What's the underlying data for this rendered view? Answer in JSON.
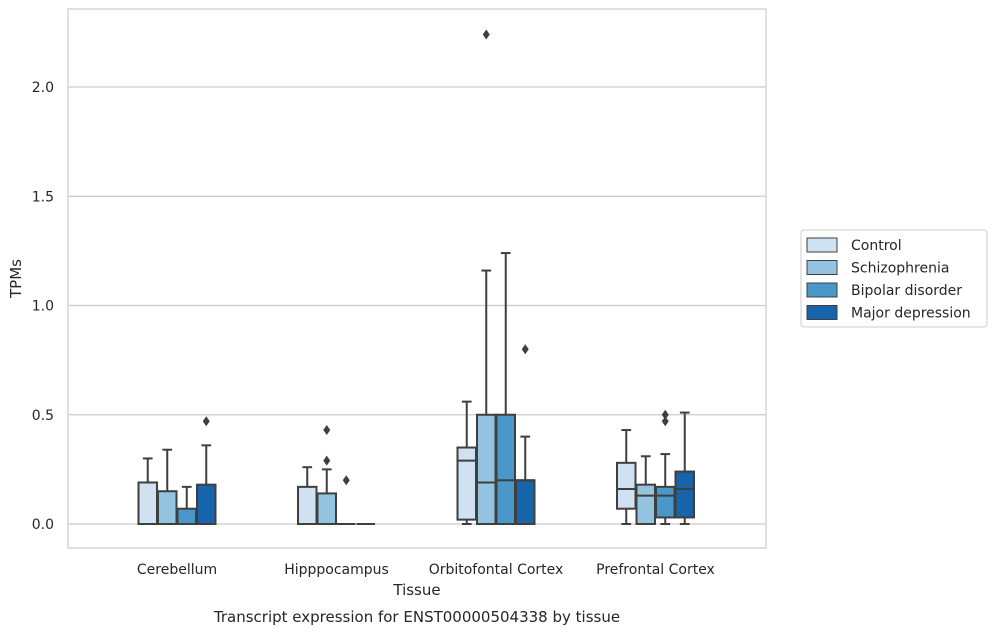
{
  "chart_data": {
    "type": "box",
    "title": "",
    "caption": "Transcript expression for ENST00000504338 by tissue",
    "xlabel": "Tissue",
    "ylabel": "TPMs",
    "ylim": [
      -0.11,
      2.38
    ],
    "yticks": [
      0.0,
      0.5,
      1.0,
      1.5,
      2.0
    ],
    "ytick_labels": [
      "0.0",
      "0.5",
      "1.0",
      "1.5",
      "2.0"
    ],
    "grid": "horizontal",
    "legend_position": "right",
    "categories": [
      "Cerebellum",
      "Hipppocampus",
      "Orbitofontal Cortex",
      "Prefrontal Cortex"
    ],
    "series": [
      {
        "name": "Control",
        "color": "#d0e1f2",
        "boxes": [
          {
            "q1": 0.0,
            "median": 0.0,
            "q3": 0.19,
            "whisker_low": 0.0,
            "whisker_high": 0.3,
            "outliers": []
          },
          {
            "q1": 0.0,
            "median": 0.0,
            "q3": 0.17,
            "whisker_low": 0.0,
            "whisker_high": 0.26,
            "outliers": []
          },
          {
            "q1": 0.02,
            "median": 0.29,
            "q3": 0.35,
            "whisker_low": 0.0,
            "whisker_high": 0.56,
            "outliers": []
          },
          {
            "q1": 0.07,
            "median": 0.16,
            "q3": 0.28,
            "whisker_low": 0.0,
            "whisker_high": 0.43,
            "outliers": []
          }
        ]
      },
      {
        "name": "Schizophrenia",
        "color": "#94c4df",
        "boxes": [
          {
            "q1": 0.0,
            "median": 0.0,
            "q3": 0.15,
            "whisker_low": 0.0,
            "whisker_high": 0.34,
            "outliers": []
          },
          {
            "q1": 0.0,
            "median": 0.0,
            "q3": 0.14,
            "whisker_low": 0.0,
            "whisker_high": 0.25,
            "outliers": [
              0.43,
              0.29
            ]
          },
          {
            "q1": 0.0,
            "median": 0.19,
            "q3": 0.5,
            "whisker_low": 0.0,
            "whisker_high": 1.16,
            "outliers": [
              2.24
            ]
          },
          {
            "q1": 0.0,
            "median": 0.13,
            "q3": 0.18,
            "whisker_low": 0.0,
            "whisker_high": 0.31,
            "outliers": []
          }
        ]
      },
      {
        "name": "Bipolar disorder",
        "color": "#4a98c9",
        "boxes": [
          {
            "q1": 0.0,
            "median": 0.0,
            "q3": 0.07,
            "whisker_low": 0.0,
            "whisker_high": 0.17,
            "outliers": []
          },
          {
            "q1": 0.0,
            "median": 0.0,
            "q3": 0.0,
            "whisker_low": 0.0,
            "whisker_high": 0.0,
            "outliers": [
              0.2
            ]
          },
          {
            "q1": 0.0,
            "median": 0.2,
            "q3": 0.5,
            "whisker_low": 0.0,
            "whisker_high": 1.24,
            "outliers": []
          },
          {
            "q1": 0.03,
            "median": 0.13,
            "q3": 0.17,
            "whisker_low": 0.0,
            "whisker_high": 0.32,
            "outliers": [
              0.5,
              0.47
            ]
          }
        ]
      },
      {
        "name": "Major depression",
        "color": "#1764ab",
        "boxes": [
          {
            "q1": 0.0,
            "median": 0.0,
            "q3": 0.18,
            "whisker_low": 0.0,
            "whisker_high": 0.36,
            "outliers": [
              0.47
            ]
          },
          {
            "q1": 0.0,
            "median": 0.0,
            "q3": 0.0,
            "whisker_low": 0.0,
            "whisker_high": 0.0,
            "outliers": []
          },
          {
            "q1": 0.0,
            "median": 0.2,
            "q3": 0.2,
            "whisker_low": 0.0,
            "whisker_high": 0.4,
            "outliers": [
              0.8
            ]
          },
          {
            "q1": 0.03,
            "median": 0.16,
            "q3": 0.24,
            "whisker_low": 0.0,
            "whisker_high": 0.51,
            "outliers": []
          }
        ]
      }
    ]
  }
}
